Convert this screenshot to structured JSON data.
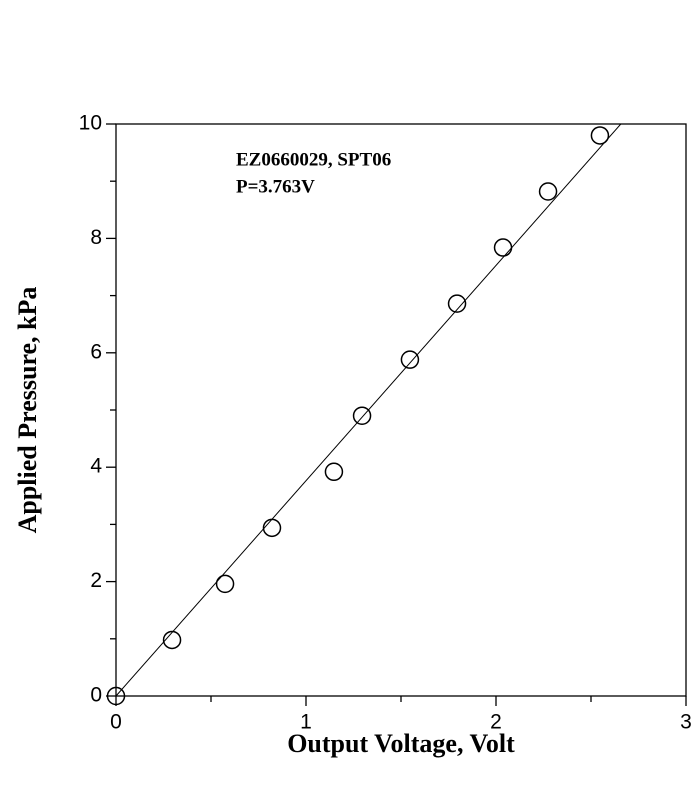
{
  "chart_data": {
    "type": "scatter",
    "x_label": "Output Voltage, Volt",
    "y_label": "Applied Pressure, kPa",
    "annotations": [
      "EZ0660029, SPT06",
      "P=3.763V"
    ],
    "x": [
      0,
      0.295,
      0.574,
      0.821,
      1.147,
      1.295,
      1.547,
      1.795,
      2.037,
      2.274,
      2.547
    ],
    "series": [
      {
        "color": "#000000",
        "marker": "open-circle",
        "values": [
          0,
          0.98,
          1.96,
          2.94,
          3.92,
          4.9,
          5.88,
          6.86,
          7.84,
          8.82,
          9.8
        ]
      }
    ],
    "lines": [
      {
        "color": "#000000",
        "x": [
          0,
          2.657
        ],
        "values": [
          0,
          10
        ]
      }
    ],
    "xlim": [
      0,
      3
    ],
    "ylim": [
      0,
      10
    ],
    "xticks": [
      0,
      1,
      2,
      3
    ],
    "yticks": [
      0,
      2,
      4,
      6,
      8,
      10
    ],
    "xminorticks": [
      0.5,
      1.5,
      2.5
    ],
    "yminorticks": [
      1,
      3,
      5,
      7,
      9
    ]
  }
}
